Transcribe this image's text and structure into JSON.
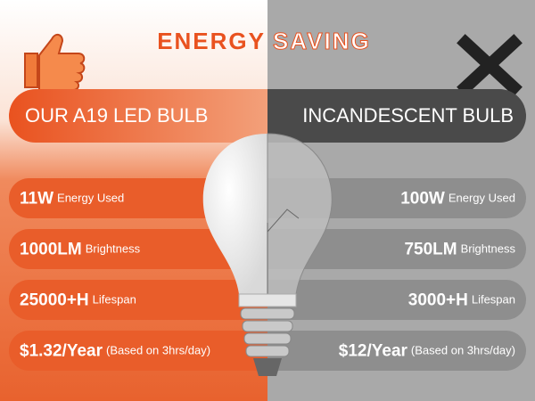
{
  "title": {
    "left": "ENERGY",
    "right": "SAVING"
  },
  "headers": {
    "left": "OUR A19 LED BULB",
    "right": "INCANDESCENT BULB"
  },
  "rows": [
    {
      "left_main": "11W",
      "left_note": "Energy Used",
      "right_main": "100W",
      "right_note": "Energy Used"
    },
    {
      "left_main": "1000LM",
      "left_note": "Brightness",
      "right_main": "750LM",
      "right_note": "Brightness"
    },
    {
      "left_main": "25000+H",
      "left_note": "Lifespan",
      "right_main": "3000+H",
      "right_note": "Lifespan"
    },
    {
      "left_main": "$1.32/Year",
      "left_note": "(Based on 3hrs/day)",
      "right_main": "$12/Year",
      "right_note": "(Based on 3hrs/day)"
    }
  ]
}
